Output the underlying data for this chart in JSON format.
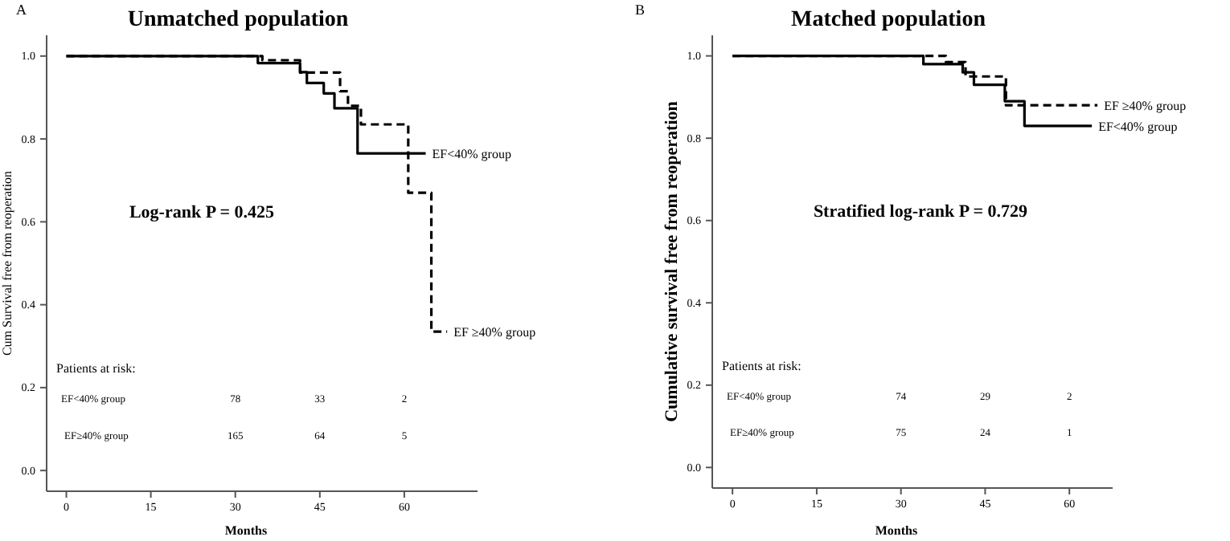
{
  "chart_data": [
    {
      "type": "step",
      "title": "Unmatched population",
      "xlabel": "Months",
      "ylabel": "Cum Survival free from reoperation",
      "xlim": [
        -3.5,
        73
      ],
      "ylim": [
        -0.05,
        1.05
      ],
      "xticks": [
        0,
        15,
        30,
        45,
        60
      ],
      "yticks": [
        {
          "value": 0,
          "label": "0.0"
        },
        {
          "value": 0.2,
          "label": "0.2"
        },
        {
          "value": 0.4,
          "label": "0.4"
        },
        {
          "value": 0.6,
          "label": "0.6"
        },
        {
          "value": 0.8,
          "label": "0.8"
        },
        {
          "value": 1,
          "label": "1.0"
        }
      ],
      "grid": false,
      "marker": "none",
      "series": [
        {
          "name": "EF<40% group",
          "color": "#000000",
          "line_style": "solid",
          "x": [
            0,
            34,
            41.5,
            42.7,
            45.7,
            47.6,
            51.7,
            63.8
          ],
          "values": [
            1,
            0.983,
            0.961,
            0.935,
            0.91,
            0.874,
            0.765,
            0.765
          ]
        },
        {
          "name": "EF ≥40% group",
          "color": "#000000",
          "line_style": "dashed",
          "x": [
            0,
            34.8,
            41.5,
            48.6,
            50,
            52.3,
            60.7,
            64.8,
            67.6
          ],
          "values": [
            1,
            0.99,
            0.96,
            0.915,
            0.88,
            0.835,
            0.67,
            0.335,
            0.335
          ]
        }
      ],
      "annotations": [
        "A",
        "Log-rank P = 0.425",
        "Patients at risk:",
        "EF<40% group",
        "EF≥40% group",
        "78",
        "33",
        "2",
        "165",
        "64",
        "5"
      ]
    },
    {
      "type": "step",
      "title": "Matched population",
      "xlabel": "Months",
      "ylabel": "Cumulative survival free from reoperation",
      "xlim": [
        -3.6,
        67.7
      ],
      "ylim": [
        -0.05,
        1.05
      ],
      "xticks": [
        0,
        15,
        30,
        45,
        60
      ],
      "yticks": [
        {
          "value": 0,
          "label": "0.0"
        },
        {
          "value": 0.2,
          "label": "0.2"
        },
        {
          "value": 0.4,
          "label": "0.4"
        },
        {
          "value": 0.6,
          "label": "0.6"
        },
        {
          "value": 0.8,
          "label": "0.8"
        },
        {
          "value": 1,
          "label": "1.0"
        }
      ],
      "grid": false,
      "marker": "none",
      "series": [
        {
          "name": "EF<40% group",
          "color": "#000000",
          "line_style": "solid",
          "x": [
            0,
            34,
            41,
            43,
            48.5,
            52,
            64
          ],
          "values": [
            1,
            0.98,
            0.96,
            0.93,
            0.89,
            0.83,
            0.83
          ]
        },
        {
          "name": "EF ≥40% group",
          "color": "#000000",
          "line_style": "dashed",
          "x": [
            0,
            38,
            41.5,
            48.7,
            65
          ],
          "values": [
            1,
            0.985,
            0.95,
            0.88,
            0.88
          ]
        }
      ],
      "annotations": [
        "B",
        "Stratified log-rank P = 0.729",
        "Patients at risk:",
        "EF<40% group",
        "EF≥40% group",
        "74",
        "29",
        "2",
        "75",
        "24",
        "1"
      ]
    }
  ]
}
